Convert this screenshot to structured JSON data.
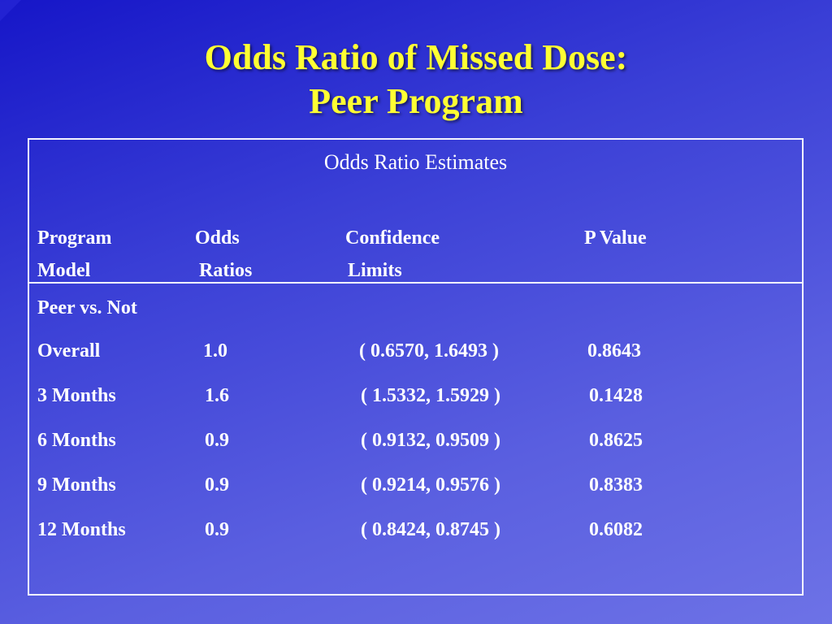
{
  "slide": {
    "title_line1": "Odds Ratio of Missed Dose:",
    "title_line2": "Peer Program"
  },
  "table": {
    "caption": "Odds Ratio Estimates",
    "headers": {
      "col1_line1": "Program",
      "col1_line2": "Model",
      "col2_line1": "Odds",
      "col2_line2": "Ratios",
      "col3_line1": "Confidence",
      "col3_line2": "Limits",
      "col4_line1": "P Value"
    },
    "group_label": "Peer vs. Not",
    "rows": [
      {
        "label": "Overall",
        "odds": "1.0",
        "ci": "( 0.6570, 1.6493 )",
        "p": "0.8643"
      },
      {
        "label": "3 Months",
        "odds": "1.6",
        "ci": "( 1.5332, 1.5929 )",
        "p": "0.1428"
      },
      {
        "label": "6 Months",
        "odds": "0.9",
        "ci": "( 0.9132, 0.9509 )",
        "p": "0.8625"
      },
      {
        "label": "9 Months",
        "odds": "0.9",
        "ci": "( 0.9214, 0.9576 )",
        "p": "0.8383"
      },
      {
        "label": "12 Months",
        "odds": "0.9",
        "ci": "( 0.8424, 0.8745 )",
        "p": "0.6082"
      }
    ]
  }
}
